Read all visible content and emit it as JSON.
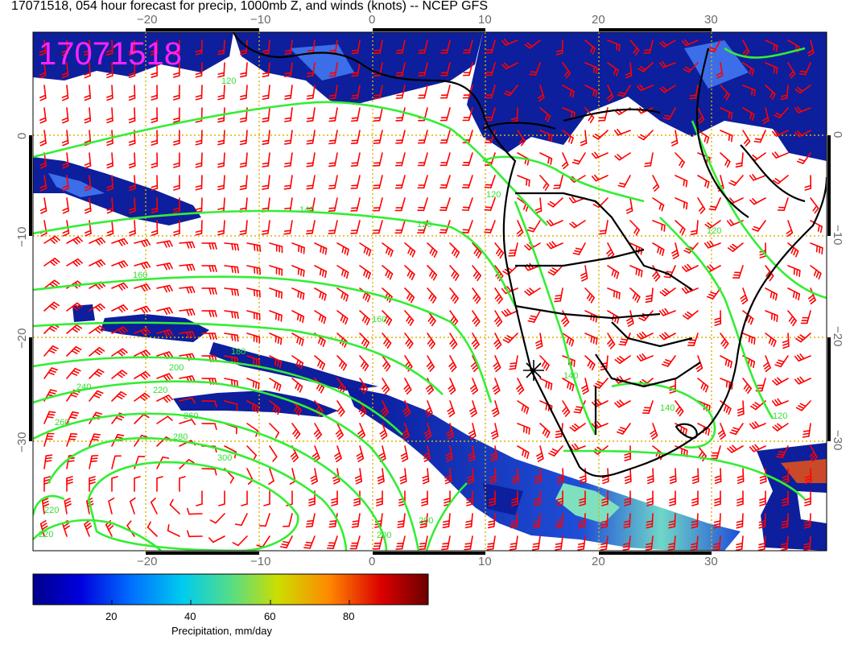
{
  "title": "17071518, 054 hour forecast for precip, 1000mb Z, and winds (knots) -- NCEP GFS",
  "stamp": "17071518",
  "top_ticks": [
    "−20",
    "−10",
    "0",
    "10",
    "20",
    "30"
  ],
  "bottom_ticks": [
    "−20",
    "−10",
    "0",
    "10",
    "20",
    "30"
  ],
  "left_ticks": [
    "0",
    "−10",
    "−20",
    "−30"
  ],
  "right_ticks": [
    "0",
    "−10",
    "−20",
    "−30"
  ],
  "contour_labels": [
    "120",
    "120",
    "140",
    "160",
    "160",
    "180",
    "200",
    "220",
    "240",
    "260",
    "260",
    "280",
    "300",
    "220",
    "220",
    "200",
    "200",
    "140",
    "140",
    "120",
    "120",
    "120"
  ],
  "colorbar": {
    "label": "Precipitation, mm/day",
    "ticks": [
      "20",
      "40",
      "60",
      "80"
    ],
    "range": [
      0,
      100
    ]
  },
  "colors": {
    "wind_barbs": "#ff0000",
    "contours": "#33ee33",
    "coastline": "#000000",
    "grid": "#e0b000",
    "stamp": "#ff22ff",
    "precip_low": "#00008b",
    "precip_high": "#8b0000"
  }
}
